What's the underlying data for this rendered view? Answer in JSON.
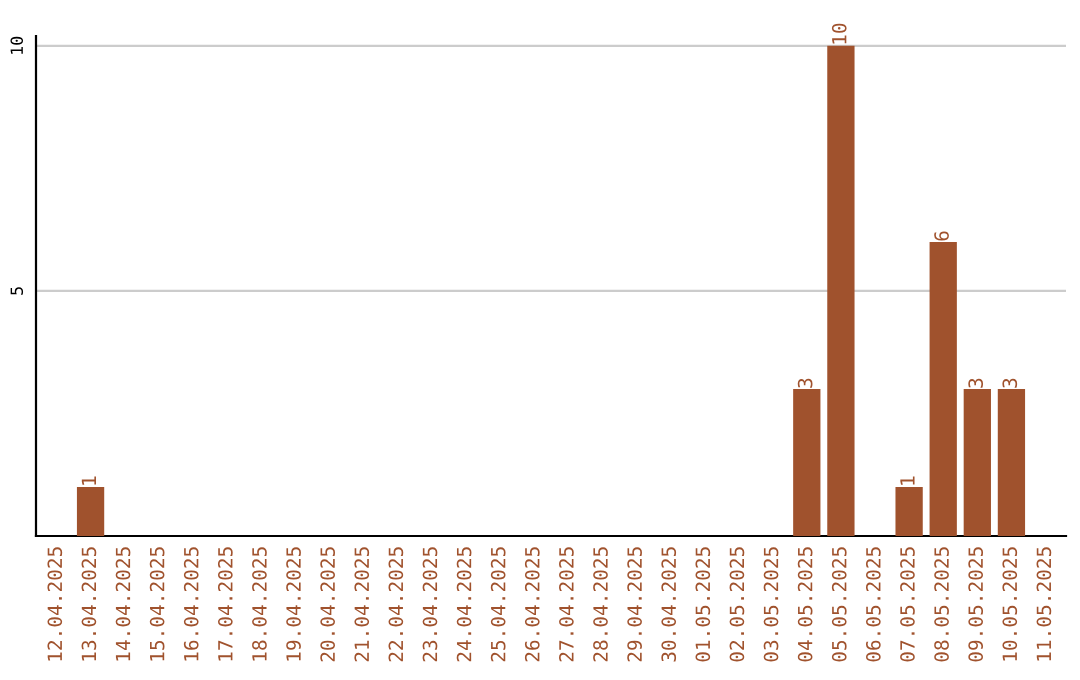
{
  "chart_data": {
    "type": "bar",
    "categories": [
      "12.04.2025",
      "13.04.2025",
      "14.04.2025",
      "15.04.2025",
      "16.04.2025",
      "17.04.2025",
      "18.04.2025",
      "19.04.2025",
      "20.04.2025",
      "21.04.2025",
      "22.04.2025",
      "23.04.2025",
      "24.04.2025",
      "25.04.2025",
      "26.04.2025",
      "27.04.2025",
      "28.04.2025",
      "29.04.2025",
      "30.04.2025",
      "01.05.2025",
      "02.05.2025",
      "03.05.2025",
      "04.05.2025",
      "05.05.2025",
      "06.05.2025",
      "07.05.2025",
      "08.05.2025",
      "09.05.2025",
      "10.05.2025",
      "11.05.2025"
    ],
    "values": [
      0,
      1,
      0,
      0,
      0,
      0,
      0,
      0,
      0,
      0,
      0,
      0,
      0,
      0,
      0,
      0,
      0,
      0,
      0,
      0,
      0,
      0,
      3,
      10,
      0,
      1,
      6,
      3,
      3,
      0
    ],
    "value_labels": [
      null,
      "1",
      null,
      null,
      null,
      null,
      null,
      null,
      null,
      null,
      null,
      null,
      null,
      null,
      null,
      null,
      null,
      null,
      null,
      null,
      null,
      null,
      "3",
      "10",
      null,
      "1",
      "6",
      "3",
      "3",
      null
    ],
    "color": "#a0522d",
    "ylim": [
      0,
      10.2
    ],
    "yticks": [
      5,
      10
    ],
    "grid": "y"
  }
}
